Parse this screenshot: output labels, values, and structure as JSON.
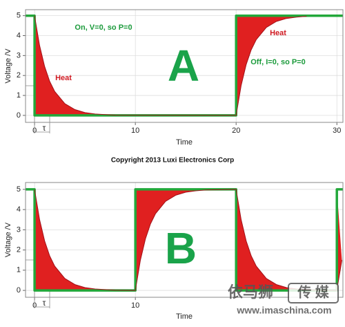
{
  "chart_data": [
    {
      "type": "line",
      "xlabel": "Time",
      "ylabel": "Voltage /V",
      "xlim": [
        -0.9,
        30.6
      ],
      "ylim": [
        -0.35,
        5.3
      ],
      "xticks": [
        0,
        10,
        20,
        30
      ],
      "yticks": [
        0,
        1,
        2,
        3,
        4,
        5
      ],
      "annotations": [
        "On, V=0, so P=0",
        "Off, I=0, so P=0",
        "Heat",
        "Heat",
        "A",
        "τ"
      ],
      "series": [
        {
          "color": "#22a83a",
          "x": [
            -0.9,
            0,
            0,
            20,
            20,
            30.6
          ],
          "values": [
            5,
            5,
            0,
            0,
            5,
            5
          ]
        },
        {
          "color": "#e02020",
          "fill": true,
          "x": [
            0,
            0.5,
            1,
            1.5,
            2,
            3,
            4,
            5,
            6,
            8,
            20,
            20.5,
            21,
            21.5,
            22,
            23,
            24,
            25,
            26,
            27
          ],
          "values": [
            5,
            3.5,
            2.45,
            1.71,
            1.2,
            0.59,
            0.29,
            0.14,
            0.07,
            0.01,
            0,
            1.5,
            2.55,
            3.29,
            3.8,
            4.41,
            4.71,
            4.86,
            4.93,
            4.97
          ]
        }
      ]
    },
    {
      "type": "line",
      "xlabel": "Time",
      "ylabel": "Voltage /V",
      "xlim": [
        -0.9,
        30.6
      ],
      "ylim": [
        -0.34,
        5.34
      ],
      "xticks": [
        0,
        10
      ],
      "yticks": [
        0,
        1,
        2,
        3,
        4,
        5
      ],
      "annotations": [
        "B",
        "τ"
      ],
      "series": [
        {
          "color": "#22a83a",
          "x": [
            -0.9,
            0,
            0,
            10,
            10,
            20,
            20,
            30,
            30,
            30.6
          ],
          "values": [
            5,
            5,
            0,
            0,
            5,
            5,
            0,
            0,
            5,
            5
          ]
        },
        {
          "color": "#e02020",
          "fill": true,
          "x": [
            0,
            0.5,
            1,
            1.5,
            2,
            3,
            4,
            5,
            6,
            8,
            10,
            10.5,
            11,
            11.5,
            12,
            13,
            14,
            15,
            16,
            17,
            20,
            20.5,
            21,
            21.5,
            22,
            23,
            24,
            25,
            26,
            28,
            30,
            30.5
          ],
          "values": [
            5,
            3.5,
            2.45,
            1.71,
            1.2,
            0.59,
            0.29,
            0.14,
            0.07,
            0.01,
            0,
            1.5,
            2.55,
            3.29,
            3.8,
            4.41,
            4.71,
            4.86,
            4.93,
            4.97,
            5,
            3.5,
            2.45,
            1.71,
            1.2,
            0.59,
            0.29,
            0.14,
            0.07,
            0.01,
            0,
            1.5
          ]
        }
      ]
    }
  ],
  "copyright": "Copyright 2013 Luxi Electronics Corp",
  "watermark": [
    "依马狮",
    "传 媒",
    "www.imaschina.com"
  ]
}
